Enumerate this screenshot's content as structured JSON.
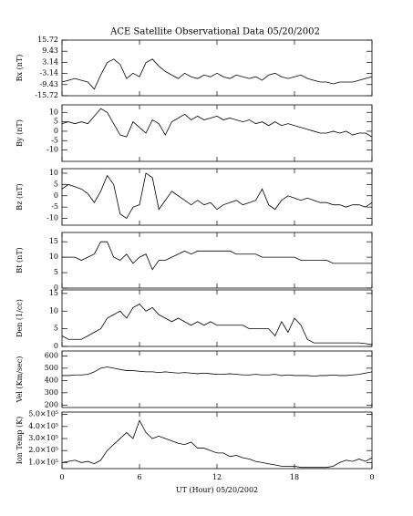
{
  "chart_data": [
    {
      "type": "line",
      "title": "ACE Satellite Observational Data   05/20/2002",
      "ylabel": "Bx (nT)",
      "color": "#000000",
      "x": [
        0,
        0.5,
        1,
        1.5,
        2,
        2.5,
        3,
        3.5,
        4,
        4.5,
        5,
        5.5,
        6,
        6.5,
        7,
        7.5,
        8,
        8.5,
        9,
        9.5,
        10,
        10.5,
        11,
        11.5,
        12,
        12.5,
        13,
        13.5,
        14,
        14.5,
        15,
        15.5,
        16,
        16.5,
        17,
        17.5,
        18,
        18.5,
        19,
        19.5,
        20,
        20.5,
        21,
        21.5,
        22,
        22.5,
        23,
        23.5,
        24
      ],
      "values": [
        -8,
        -7,
        -6,
        -7,
        -8,
        -12,
        -4,
        3,
        5,
        2,
        -6,
        -3,
        -5,
        3,
        5,
        1,
        -2,
        -4,
        -6,
        -3,
        -5,
        -6,
        -4,
        -5,
        -3,
        -5,
        -6,
        -4,
        -5,
        -6,
        -5,
        -7,
        -4,
        -3,
        -5,
        -6,
        -5,
        -4,
        -6,
        -7,
        -8,
        -8,
        -9,
        -8,
        -8,
        -8,
        -7,
        -6,
        -5
      ],
      "xlim": [
        0,
        24
      ],
      "xticks": [
        0,
        6,
        12,
        18,
        24
      ],
      "ylim": [
        -15.72,
        15.72
      ],
      "yticks": [
        15.72,
        9.43,
        3.14,
        -3.14,
        -9.43,
        -15.72
      ]
    },
    {
      "type": "line",
      "ylabel": "By (nT)",
      "color": "#000000",
      "x": [
        0,
        0.5,
        1,
        1.5,
        2,
        2.5,
        3,
        3.5,
        4,
        4.5,
        5,
        5.5,
        6,
        6.5,
        7,
        7.5,
        8,
        8.5,
        9,
        9.5,
        10,
        10.5,
        11,
        11.5,
        12,
        12.5,
        13,
        13.5,
        14,
        14.5,
        15,
        15.5,
        16,
        16.5,
        17,
        17.5,
        18,
        18.5,
        19,
        19.5,
        20,
        20.5,
        21,
        21.5,
        22,
        22.5,
        23,
        23.5,
        24
      ],
      "values": [
        4,
        5,
        4,
        5,
        4,
        8,
        12,
        10,
        4,
        -2,
        -3,
        5,
        2,
        -1,
        6,
        4,
        -2,
        5,
        7,
        9,
        6,
        8,
        6,
        7,
        8,
        6,
        7,
        6,
        5,
        6,
        4,
        5,
        3,
        5,
        3,
        4,
        3,
        2,
        1,
        0,
        -1,
        -1,
        0,
        -1,
        0,
        -2,
        -1,
        -1,
        -3
      ],
      "xlim": [
        0,
        24
      ],
      "xticks": [
        0,
        6,
        12,
        18,
        24
      ],
      "ylim": [
        -16,
        14
      ],
      "yticks": [
        -10,
        -5,
        0,
        5,
        10
      ]
    },
    {
      "type": "line",
      "ylabel": "Bz (nT)",
      "color": "#000000",
      "x": [
        0,
        0.5,
        1,
        1.5,
        2,
        2.5,
        3,
        3.5,
        4,
        4.5,
        5,
        5.5,
        6,
        6.5,
        7,
        7.5,
        8,
        8.5,
        9,
        9.5,
        10,
        10.5,
        11,
        11.5,
        12,
        12.5,
        13,
        13.5,
        14,
        14.5,
        15,
        15.5,
        16,
        16.5,
        17,
        17.5,
        18,
        18.5,
        19,
        19.5,
        20,
        20.5,
        21,
        21.5,
        22,
        22.5,
        23,
        23.5,
        24
      ],
      "values": [
        3,
        5,
        4,
        3,
        1,
        -3,
        2,
        9,
        5,
        -8,
        -10,
        -5,
        -4,
        10,
        8,
        -6,
        -2,
        2,
        0,
        -2,
        -4,
        -2,
        -4,
        -3,
        -6,
        -4,
        -3,
        -2,
        -4,
        -3,
        -2,
        3,
        -4,
        -6,
        -2,
        0,
        -1,
        -2,
        -1,
        -2,
        -3,
        -3,
        -4,
        -4,
        -5,
        -4,
        -4,
        -5,
        -3
      ],
      "xlim": [
        0,
        24
      ],
      "xticks": [
        0,
        6,
        12,
        18,
        24
      ],
      "ylim": [
        -13,
        12
      ],
      "yticks": [
        -10,
        -5,
        0,
        5,
        10
      ]
    },
    {
      "type": "line",
      "ylabel": "Bt (nT)",
      "color": "#000000",
      "x": [
        0,
        0.5,
        1,
        1.5,
        2,
        2.5,
        3,
        3.5,
        4,
        4.5,
        5,
        5.5,
        6,
        6.5,
        7,
        7.5,
        8,
        8.5,
        9,
        9.5,
        10,
        10.5,
        11,
        11.5,
        12,
        12.5,
        13,
        13.5,
        14,
        14.5,
        15,
        15.5,
        16,
        16.5,
        17,
        17.5,
        18,
        18.5,
        19,
        19.5,
        20,
        20.5,
        21,
        21.5,
        22,
        22.5,
        23,
        23.5,
        24
      ],
      "values": [
        10,
        10,
        10,
        9,
        10,
        11,
        15,
        15,
        10,
        9,
        11,
        8,
        10,
        11,
        6,
        9,
        9,
        10,
        11,
        12,
        11,
        12,
        12,
        12,
        12,
        12,
        12,
        11,
        11,
        11,
        11,
        10,
        10,
        10,
        10,
        10,
        10,
        9,
        9,
        9,
        9,
        9,
        8,
        8,
        8,
        8,
        8,
        8,
        8
      ],
      "xlim": [
        0,
        24
      ],
      "xticks": [
        0,
        6,
        12,
        18,
        24
      ],
      "ylim": [
        0,
        18
      ],
      "yticks": [
        0,
        5,
        10,
        15
      ]
    },
    {
      "type": "line",
      "ylabel": "Den (1/cc)",
      "color": "#000000",
      "x": [
        0,
        0.5,
        1,
        1.5,
        2,
        2.5,
        3,
        3.5,
        4,
        4.5,
        5,
        5.5,
        6,
        6.5,
        7,
        7.5,
        8,
        8.5,
        9,
        9.5,
        10,
        10.5,
        11,
        11.5,
        12,
        12.5,
        13,
        13.5,
        14,
        14.5,
        15,
        15.5,
        16,
        16.5,
        17,
        17.5,
        18,
        18.5,
        19,
        19.5,
        20,
        20.5,
        21,
        21.5,
        22,
        22.5,
        23,
        23.5,
        24
      ],
      "values": [
        3,
        2,
        2,
        2,
        3,
        4,
        5,
        8,
        9,
        10,
        8,
        11,
        12,
        10,
        11,
        9,
        8,
        7,
        8,
        7,
        6,
        7,
        6,
        7,
        6,
        6,
        6,
        6,
        6,
        5,
        5,
        5,
        5,
        3,
        7,
        4,
        8,
        6,
        2,
        1,
        1,
        1,
        1,
        1,
        1,
        1,
        1,
        0.8,
        0.5
      ],
      "xlim": [
        0,
        24
      ],
      "xticks": [
        0,
        6,
        12,
        18,
        24
      ],
      "ylim": [
        0,
        16
      ],
      "yticks": [
        0,
        5,
        10,
        15
      ]
    },
    {
      "type": "line",
      "ylabel": "Vel (Km/sec)",
      "color": "#000000",
      "x": [
        0,
        0.5,
        1,
        1.5,
        2,
        2.5,
        3,
        3.5,
        4,
        4.5,
        5,
        5.5,
        6,
        6.5,
        7,
        7.5,
        8,
        8.5,
        9,
        9.5,
        10,
        10.5,
        11,
        11.5,
        12,
        12.5,
        13,
        13.5,
        14,
        14.5,
        15,
        15.5,
        16,
        16.5,
        17,
        17.5,
        18,
        18.5,
        19,
        19.5,
        20,
        20.5,
        21,
        21.5,
        22,
        22.5,
        23,
        23.5,
        24
      ],
      "values": [
        440,
        440,
        445,
        445,
        450,
        470,
        500,
        510,
        500,
        490,
        480,
        480,
        475,
        470,
        470,
        465,
        470,
        465,
        460,
        465,
        460,
        455,
        460,
        455,
        450,
        450,
        455,
        450,
        445,
        445,
        450,
        445,
        445,
        450,
        440,
        445,
        440,
        440,
        440,
        435,
        440,
        440,
        445,
        440,
        440,
        445,
        450,
        460,
        470
      ],
      "xlim": [
        0,
        24
      ],
      "xticks": [
        0,
        6,
        12,
        18,
        24
      ],
      "ylim": [
        180,
        640
      ],
      "yticks": [
        200,
        300,
        400,
        500,
        600
      ]
    },
    {
      "type": "line",
      "ylabel": "Ion Temp (K)",
      "xlabel": "UT (Hour)   05/20/2002",
      "color": "#000000",
      "x": [
        0,
        0.5,
        1,
        1.5,
        2,
        2.5,
        3,
        3.5,
        4,
        4.5,
        5,
        5.5,
        6,
        6.5,
        7,
        7.5,
        8,
        8.5,
        9,
        9.5,
        10,
        10.5,
        11,
        11.5,
        12,
        12.5,
        13,
        13.5,
        14,
        14.5,
        15,
        15.5,
        16,
        16.5,
        17,
        17.5,
        18,
        18.5,
        19,
        19.5,
        20,
        20.5,
        21,
        21.5,
        22,
        22.5,
        23,
        23.5,
        24
      ],
      "values": [
        100000,
        110000,
        120000,
        100000,
        110000,
        90000,
        120000,
        200000,
        250000,
        300000,
        350000,
        300000,
        450000,
        350000,
        300000,
        320000,
        300000,
        280000,
        260000,
        250000,
        270000,
        220000,
        220000,
        200000,
        180000,
        180000,
        150000,
        160000,
        140000,
        130000,
        110000,
        100000,
        90000,
        80000,
        70000,
        70000,
        70000,
        60000,
        60000,
        60000,
        60000,
        60000,
        70000,
        100000,
        120000,
        110000,
        130000,
        110000,
        140000
      ],
      "xlim": [
        0,
        24
      ],
      "xticks": [
        0,
        6,
        12,
        18,
        {
          "value": 24,
          "label": "0"
        }
      ],
      "ylim": [
        50000,
        520000
      ],
      "yticks": [
        {
          "value": 100000,
          "label": "1.0×10⁵"
        },
        {
          "value": 200000,
          "label": "2.0×10⁵"
        },
        {
          "value": 300000,
          "label": "3.0×10⁵"
        },
        {
          "value": 400000,
          "label": "4.0×10⁵"
        },
        {
          "value": 500000,
          "label": "5.0×10⁵"
        }
      ]
    }
  ]
}
